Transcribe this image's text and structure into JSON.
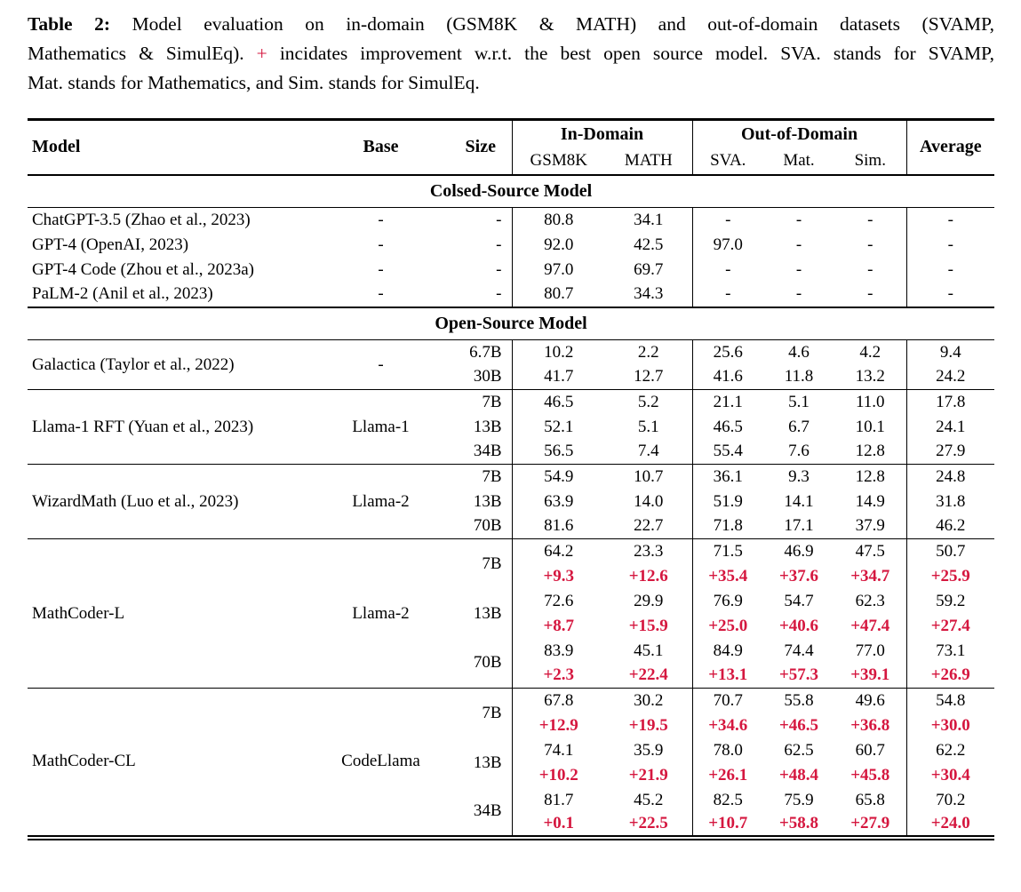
{
  "colors": {
    "accent_red": "#D5173F",
    "text": "#000000"
  },
  "caption": {
    "label": "Table 2:",
    "line1": "Model evaluation on in-domain (GSM8K & MATH) and out-of-domain datasets (SVAMP,",
    "line2_before_plus": "Mathematics & SimulEq).",
    "plus": "+",
    "line2_after_plus": "incidates improvement w.r.t. the best open source model. SVA. stands for SVAMP,",
    "line3": "Mat. stands for Mathematics, and Sim. stands for SimulEq."
  },
  "table": {
    "header": {
      "model": "Model",
      "base": "Base",
      "size": "Size",
      "in_domain": "In-Domain",
      "out_of_domain": "Out-of-Domain",
      "average": "Average",
      "sub_columns": [
        "GSM8K",
        "MATH",
        "SVA.",
        "Mat.",
        "Sim."
      ]
    },
    "sections": [
      {
        "title": "Colsed-Source Model",
        "groups": [
          {
            "model": "ChatGPT-3.5 (Zhao et al., 2023)",
            "base": "-",
            "rows": [
              {
                "size": "-",
                "values": [
                  "80.8",
                  "34.1",
                  "-",
                  "-",
                  "-",
                  "-"
                ]
              }
            ]
          },
          {
            "model": "GPT-4 (OpenAI, 2023)",
            "base": "-",
            "rows": [
              {
                "size": "-",
                "values": [
                  "92.0",
                  "42.5",
                  "97.0",
                  "-",
                  "-",
                  "-"
                ]
              }
            ]
          },
          {
            "model": "GPT-4 Code (Zhou et al., 2023a)",
            "base": "-",
            "rows": [
              {
                "size": "-",
                "values": [
                  "97.0",
                  "69.7",
                  "-",
                  "-",
                  "-",
                  "-"
                ]
              }
            ]
          },
          {
            "model": "PaLM-2 (Anil et al., 2023)",
            "base": "-",
            "rows": [
              {
                "size": "-",
                "values": [
                  "80.7",
                  "34.3",
                  "-",
                  "-",
                  "-",
                  "-"
                ]
              }
            ]
          }
        ]
      },
      {
        "title": "Open-Source Model",
        "groups": [
          {
            "model": "Galactica (Taylor et al., 2022)",
            "base": "-",
            "rows": [
              {
                "size": "6.7B",
                "values": [
                  "10.2",
                  "2.2",
                  "25.6",
                  "4.6",
                  "4.2",
                  "9.4"
                ]
              },
              {
                "size": "30B",
                "values": [
                  "41.7",
                  "12.7",
                  "41.6",
                  "11.8",
                  "13.2",
                  "24.2"
                ]
              }
            ]
          },
          {
            "model": "Llama-1 RFT (Yuan et al., 2023)",
            "base": "Llama-1",
            "rows": [
              {
                "size": "7B",
                "values": [
                  "46.5",
                  "5.2",
                  "21.1",
                  "5.1",
                  "11.0",
                  "17.8"
                ]
              },
              {
                "size": "13B",
                "values": [
                  "52.1",
                  "5.1",
                  "46.5",
                  "6.7",
                  "10.1",
                  "24.1"
                ]
              },
              {
                "size": "34B",
                "values": [
                  "56.5",
                  "7.4",
                  "55.4",
                  "7.6",
                  "12.8",
                  "27.9"
                ]
              }
            ]
          },
          {
            "model": "WizardMath (Luo et al., 2023)",
            "base": "Llama-2",
            "rows": [
              {
                "size": "7B",
                "values": [
                  "54.9",
                  "10.7",
                  "36.1",
                  "9.3",
                  "12.8",
                  "24.8"
                ]
              },
              {
                "size": "13B",
                "values": [
                  "63.9",
                  "14.0",
                  "51.9",
                  "14.1",
                  "14.9",
                  "31.8"
                ]
              },
              {
                "size": "70B",
                "values": [
                  "81.6",
                  "22.7",
                  "71.8",
                  "17.1",
                  "37.9",
                  "46.2"
                ]
              }
            ]
          },
          {
            "model": "MathCoder-L",
            "base": "Llama-2",
            "rows": [
              {
                "size": "7B",
                "values": [
                  "64.2",
                  "23.3",
                  "71.5",
                  "46.9",
                  "47.5",
                  "50.7"
                ],
                "improvements": [
                  "+9.3",
                  "+12.6",
                  "+35.4",
                  "+37.6",
                  "+34.7",
                  "+25.9"
                ]
              },
              {
                "size": "13B",
                "values": [
                  "72.6",
                  "29.9",
                  "76.9",
                  "54.7",
                  "62.3",
                  "59.2"
                ],
                "improvements": [
                  "+8.7",
                  "+15.9",
                  "+25.0",
                  "+40.6",
                  "+47.4",
                  "+27.4"
                ]
              },
              {
                "size": "70B",
                "values": [
                  "83.9",
                  "45.1",
                  "84.9",
                  "74.4",
                  "77.0",
                  "73.1"
                ],
                "improvements": [
                  "+2.3",
                  "+22.4",
                  "+13.1",
                  "+57.3",
                  "+39.1",
                  "+26.9"
                ]
              }
            ]
          },
          {
            "model": "MathCoder-CL",
            "base": "CodeLlama",
            "rows": [
              {
                "size": "7B",
                "values": [
                  "67.8",
                  "30.2",
                  "70.7",
                  "55.8",
                  "49.6",
                  "54.8"
                ],
                "improvements": [
                  "+12.9",
                  "+19.5",
                  "+34.6",
                  "+46.5",
                  "+36.8",
                  "+30.0"
                ]
              },
              {
                "size": "13B",
                "values": [
                  "74.1",
                  "35.9",
                  "78.0",
                  "62.5",
                  "60.7",
                  "62.2"
                ],
                "improvements": [
                  "+10.2",
                  "+21.9",
                  "+26.1",
                  "+48.4",
                  "+45.8",
                  "+30.4"
                ]
              },
              {
                "size": "34B",
                "values": [
                  "81.7",
                  "45.2",
                  "82.5",
                  "75.9",
                  "65.8",
                  "70.2"
                ],
                "improvements": [
                  "+0.1",
                  "+22.5",
                  "+10.7",
                  "+58.8",
                  "+27.9",
                  "+24.0"
                ]
              }
            ]
          }
        ]
      }
    ]
  }
}
